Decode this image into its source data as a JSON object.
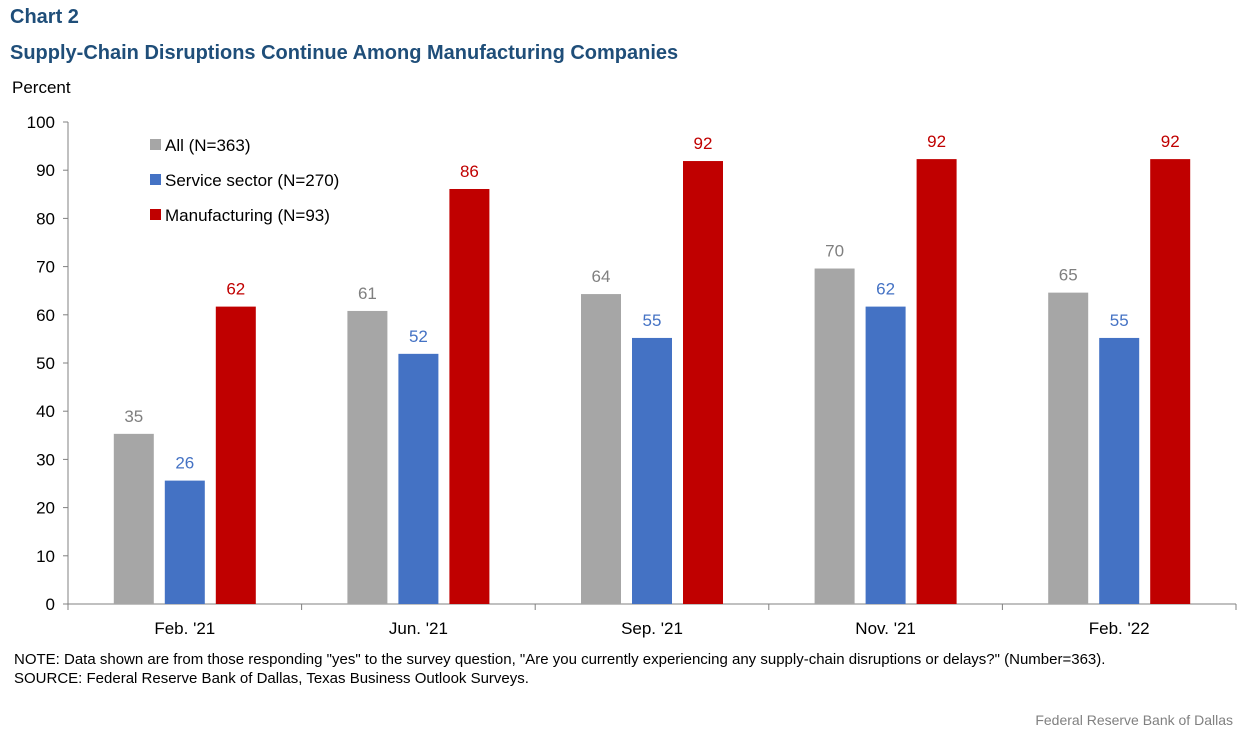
{
  "header": {
    "chart_label": "Chart 2",
    "title": "Supply-Chain Disruptions Continue Among Manufacturing Companies"
  },
  "footer": {
    "note": "NOTE: Data shown are from those responding \"yes\" to the survey question, \"Are you currently experiencing any supply-chain disruptions or delays?\" (Number=363).",
    "source": "SOURCE: Federal Reserve Bank of Dallas, Texas Business Outlook Surveys.",
    "credit": "Federal Reserve  Bank of Dallas"
  },
  "chart_data": {
    "type": "bar",
    "title": "Supply-Chain Disruptions Continue Among Manufacturing Companies",
    "ylabel": "Percent",
    "xlabel": "",
    "ylim": [
      0,
      100
    ],
    "yticks": [
      0,
      10,
      20,
      30,
      40,
      50,
      60,
      70,
      80,
      90,
      100
    ],
    "grid": false,
    "legend_position": "top-left",
    "categories": [
      "Feb. '21",
      "Jun. '21",
      "Sep. '21",
      "Nov. '21",
      "Feb. '22"
    ],
    "series": [
      {
        "name": "All (N=363)",
        "color": "#a6a6a6",
        "label_color": "#7f7f7f",
        "values": [
          35.3,
          60.8,
          64.3,
          69.6,
          64.6
        ],
        "labels": [
          "35",
          "61",
          "64",
          "70",
          "65"
        ]
      },
      {
        "name": "Service sector (N=270)",
        "color": "#4472c4",
        "label_color": "#4472c4",
        "values": [
          25.6,
          51.9,
          55.2,
          61.7,
          55.2
        ],
        "labels": [
          "26",
          "52",
          "55",
          "62",
          "55"
        ]
      },
      {
        "name": "Manufacturing (N=93)",
        "color": "#c00000",
        "label_color": "#c00000",
        "values": [
          61.7,
          86.1,
          91.9,
          92.3,
          92.3
        ],
        "labels": [
          "62",
          "86",
          "92",
          "92",
          "92"
        ]
      }
    ]
  }
}
